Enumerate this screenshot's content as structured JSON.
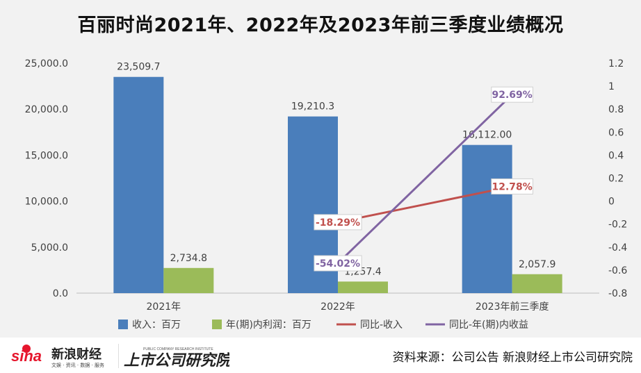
{
  "title": "百丽时尚2021年、2022年及2023年前三季度业绩概况",
  "footer": {
    "source": "资料来源：公司公告 新浪财经上市公司研究院",
    "sina_brand": "新浪财经",
    "sina_sub": "文娱 · 资讯 · 数据 · 服务",
    "brand_text": "上市公司研究院",
    "brand_sub": "PUBLIC COMPANY RESEARCH INSTITUTE"
  },
  "chart_data": {
    "type": "bar",
    "categories": [
      "2021年",
      "2022年",
      "2023年前三季度"
    ],
    "series": [
      {
        "name": "收入：百万",
        "type": "bar",
        "axis": "left",
        "color": "#4a7ebb",
        "values": [
          23509.7,
          19210.3,
          16112.0
        ],
        "labels": [
          "23,509.7",
          "19,210.3",
          "16,112.00"
        ]
      },
      {
        "name": "年(期)内利润：百万",
        "type": "bar",
        "axis": "left",
        "color": "#9bbb59",
        "values": [
          2734.8,
          1257.4,
          2057.9
        ],
        "labels": [
          "2,734.8",
          "1,257.4",
          "2,057.9"
        ]
      },
      {
        "name": "同比-收入",
        "type": "line",
        "axis": "right",
        "color": "#c0504d",
        "values": [
          null,
          -0.1829,
          0.1278
        ],
        "labels": [
          "",
          "-18.29%",
          "12.78%"
        ]
      },
      {
        "name": "同比-年(期)内收益",
        "type": "line",
        "axis": "right",
        "color": "#8064a2",
        "values": [
          null,
          -0.5402,
          0.9269
        ],
        "labels": [
          "",
          "-54.02%",
          "92.69%"
        ]
      }
    ],
    "y_left": {
      "range": [
        0,
        25000
      ],
      "ticks": [
        "0.0",
        "5,000.0",
        "10,000.0",
        "15,000.0",
        "20,000.0",
        "25,000.0"
      ]
    },
    "y_right": {
      "range": [
        -0.8,
        1.2
      ],
      "ticks": [
        "-0.8",
        "-0.6",
        "-0.4",
        "-0.2",
        "0",
        "0.2",
        "0.4",
        "0.6",
        "0.8",
        "1",
        "1.2"
      ]
    },
    "grid": false,
    "legend": "bottom"
  }
}
